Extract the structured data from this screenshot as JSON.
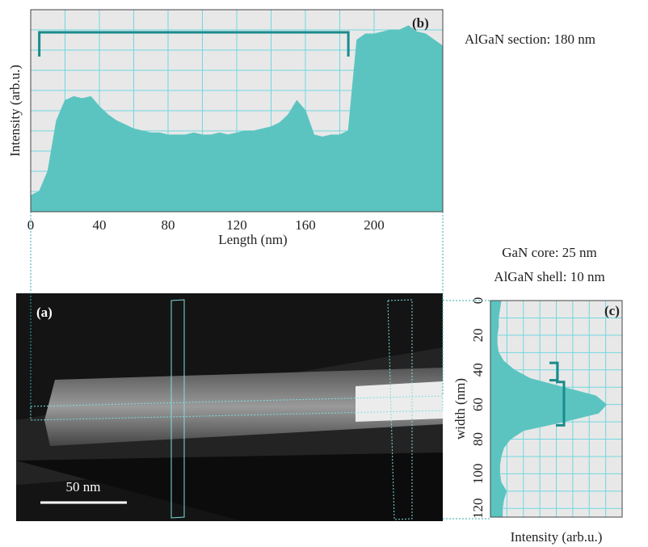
{
  "chart_data": [
    {
      "type": "area",
      "orientation": "vertical",
      "label": "(b)",
      "annotation": "AlGaN section: 180 nm",
      "xlabel": "Length (nm)",
      "ylabel": "Intensity (arb.u.)",
      "color": "#5bc4c0",
      "grid": true,
      "x": [
        0,
        5,
        10,
        15,
        20,
        25,
        30,
        35,
        40,
        45,
        50,
        55,
        60,
        65,
        70,
        75,
        80,
        85,
        90,
        95,
        100,
        105,
        110,
        115,
        120,
        125,
        130,
        135,
        140,
        145,
        150,
        155,
        160,
        165,
        170,
        175,
        180,
        185,
        190,
        195,
        200,
        205,
        210,
        215,
        220,
        225,
        230,
        235,
        240
      ],
      "values": [
        8,
        10,
        20,
        45,
        55,
        57,
        56,
        57,
        52,
        48,
        45,
        43,
        41,
        40,
        39,
        39,
        38,
        38,
        38,
        39,
        38,
        38,
        39,
        38,
        39,
        40,
        40,
        41,
        42,
        44,
        48,
        55,
        50,
        38,
        37,
        38,
        38,
        40,
        85,
        88,
        88,
        89,
        90,
        90,
        92,
        89,
        88,
        85,
        82
      ],
      "xlim": [
        0,
        240
      ],
      "xticks": [
        0,
        40,
        80,
        120,
        160,
        200
      ],
      "ylim": [
        0,
        100
      ],
      "spans": [
        {
          "start": 5,
          "end": 185
        }
      ]
    },
    {
      "type": "area",
      "orientation": "horizontal",
      "label": "(c)",
      "annotation": [
        "GaN core: 25 nm",
        "AlGaN shell: 10 nm"
      ],
      "xlabel": "width (nm)",
      "ylabel": "Intensity (arb.u.)",
      "color": "#5bc4c0",
      "grid": true,
      "x": [
        0,
        5,
        10,
        15,
        20,
        25,
        30,
        35,
        40,
        45,
        50,
        55,
        60,
        65,
        70,
        75,
        80,
        85,
        90,
        95,
        100,
        105,
        110,
        115,
        120,
        125
      ],
      "values": [
        8,
        7,
        6,
        6,
        5,
        5,
        6,
        10,
        18,
        30,
        55,
        80,
        88,
        82,
        55,
        25,
        15,
        10,
        8,
        7,
        7,
        8,
        12,
        10,
        9,
        9
      ],
      "xlim": [
        0,
        125
      ],
      "xticks": [
        0,
        20,
        40,
        60,
        80,
        100,
        120
      ],
      "ylim": [
        0,
        100
      ],
      "spans": [
        {
          "start": 36,
          "end": 46
        },
        {
          "start": 47,
          "end": 72
        }
      ]
    }
  ],
  "image": {
    "label": "(a)",
    "scale_bar": "50 nm"
  }
}
